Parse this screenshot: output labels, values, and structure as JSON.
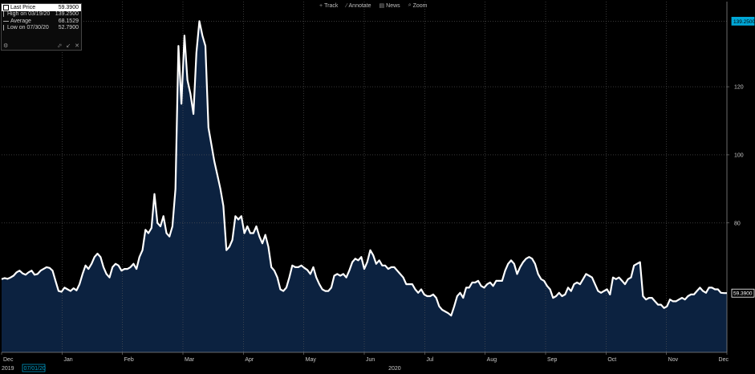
{
  "toolbar": {
    "items": [
      {
        "icon": "crosshair-icon",
        "glyph": "+",
        "label": "Track"
      },
      {
        "icon": "pencil-icon",
        "glyph": "⁄",
        "label": "Annotate"
      },
      {
        "icon": "news-icon",
        "glyph": "▤",
        "label": "News"
      },
      {
        "icon": "magnifier-icon",
        "glyph": "⌕",
        "label": "Zoom"
      }
    ]
  },
  "legend": {
    "rows": [
      {
        "label": "Last Price",
        "value": "59.3900"
      },
      {
        "label": "High on 03/19/20",
        "value": "139.2500"
      },
      {
        "label": "Average",
        "value": "68.1529"
      },
      {
        "label": "Low on 07/30/20",
        "value": "52.7900"
      }
    ],
    "controls": {
      "gear": "⚙",
      "pin": "⬀",
      "collapse": "↙",
      "close": "✕"
    }
  },
  "colors": {
    "background": "#000000",
    "line": "#ffffff",
    "area_fill": "#0c2240",
    "grid": "#5a5a5a",
    "axis_text": "#c8c8c8",
    "highlight_box": "#00a8d8"
  },
  "chart_data": {
    "type": "area",
    "title": "",
    "xlabel": "",
    "ylabel": "",
    "y_axis_side": "right",
    "ylim": [
      42,
      145
    ],
    "yticks": [
      80,
      100,
      120
    ],
    "grid": true,
    "x_month_ticks": [
      "Dec",
      "Jan",
      "Feb",
      "Mar",
      "Apr",
      "May",
      "Jun",
      "Jul",
      "Aug",
      "Sep",
      "Oct",
      "Nov",
      "Dec"
    ],
    "x_year_labels": [
      {
        "text": "2019",
        "month_index": 0
      },
      {
        "text": "2020",
        "month_index": 6
      }
    ],
    "x_selected_date": "07/01/20",
    "annotations": {
      "high_label": "139.2500",
      "last_label": "59.3900"
    },
    "series": [
      {
        "values": [
          63.5,
          63.8,
          63.6,
          64.0,
          64.5,
          65.5,
          66.0,
          65.2,
          64.8,
          65.5,
          66.0,
          64.8,
          65.0,
          66.0,
          66.5,
          67.0,
          66.8,
          66.0,
          63.0,
          60.0,
          59.8,
          61.0,
          60.5,
          60.0,
          60.8,
          60.2,
          62.0,
          65.0,
          67.5,
          66.5,
          68.0,
          70.0,
          71.0,
          70.0,
          67.0,
          65.0,
          64.0,
          67.0,
          68.0,
          67.5,
          66.0,
          66.5,
          66.5,
          67.0,
          68.0,
          66.5,
          70.0,
          72.0,
          78.0,
          77.0,
          78.5,
          88.5,
          80.0,
          79.0,
          82.0,
          77.0,
          76.0,
          79.0,
          90.0,
          132.0,
          115.0,
          135.0,
          122.0,
          118.0,
          112.0,
          130.0,
          139.25,
          135.0,
          132.0,
          108.0,
          103.0,
          98.0,
          94.0,
          90.0,
          85.0,
          72.0,
          73.0,
          75.0,
          82.0,
          81.0,
          82.0,
          77.0,
          79.0,
          77.0,
          77.0,
          79.0,
          76.0,
          74.0,
          76.5,
          73.0,
          67.0,
          66.0,
          64.0,
          60.5,
          60.0,
          61.0,
          64.0,
          67.5,
          67.0,
          67.0,
          67.5,
          66.8,
          66.2,
          65.0,
          67.0,
          64.0,
          62.0,
          60.5,
          60.0,
          60.0,
          61.0,
          64.5,
          65.0,
          64.5,
          65.0,
          64.0,
          66.0,
          68.5,
          69.5,
          69.0,
          70.0,
          66.5,
          68.5,
          72.0,
          70.5,
          68.0,
          69.0,
          67.5,
          67.5,
          66.5,
          67.0,
          67.0,
          66.0,
          65.0,
          64.0,
          62.0,
          62.0,
          62.0,
          60.5,
          59.5,
          60.5,
          59.0,
          58.5,
          58.5,
          59.0,
          58.0,
          55.5,
          54.5,
          54.0,
          53.5,
          52.79,
          55.5,
          58.5,
          59.5,
          58.0,
          61.0,
          61.0,
          62.5,
          62.5,
          63.0,
          61.5,
          61.0,
          62.0,
          62.5,
          61.5,
          63.0,
          63.0,
          63.0,
          66.0,
          68.0,
          69.0,
          68.0,
          65.0,
          67.0,
          68.5,
          69.5,
          70.0,
          69.5,
          68.0,
          65.0,
          63.5,
          63.0,
          61.5,
          60.5,
          58.0,
          58.5,
          59.5,
          58.5,
          59.0,
          61.0,
          60.0,
          62.0,
          62.5,
          62.0,
          63.5,
          65.0,
          64.5,
          64.0,
          62.0,
          60.0,
          59.5,
          60.0,
          60.5,
          59.0,
          64.0,
          63.5,
          64.0,
          63.0,
          62.0,
          63.5,
          64.0,
          67.5,
          68.0,
          68.5,
          58.5,
          57.5,
          58.0,
          58.0,
          57.0,
          56.0,
          56.0,
          55.0,
          55.5,
          57.5,
          57.0,
          57.0,
          57.5,
          58.0,
          57.5,
          58.5,
          59.0,
          59.0,
          60.0,
          61.0,
          60.0,
          59.5,
          61.0,
          61.0,
          60.5,
          60.5,
          59.5,
          59.4,
          59.39
        ]
      }
    ]
  }
}
